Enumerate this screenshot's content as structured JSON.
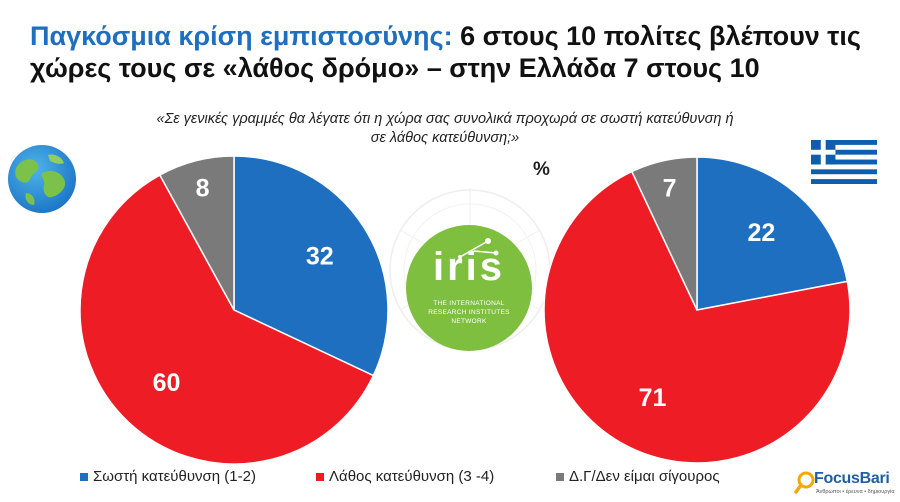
{
  "header": {
    "title_lead": "Παγκόσμια κρίση εμπιστοσύνης:",
    "title_rest": " 6 στους 10 πολίτες βλέπουν τις χώρες τους σε «λάθος δρόμο» – στην Ελλάδα 7 στους 10"
  },
  "question": "«Σε γενικές γραμμές θα λέγατε ότι η χώρα σας συνολικά προχωρά σε σωστή κατεύθυνση ή σε λάθος κατεύθυνση;»",
  "unit": "%",
  "chart_data": [
    {
      "type": "pie",
      "categories": [
        "Σωστή κατεύθυνση (1-2)",
        "Λάθος κατεύθυνση (3 -4)",
        "Δ.Γ/Δεν είμαι σίγουρος"
      ],
      "values": [
        32,
        60,
        8
      ],
      "colors": [
        "#1f6fc1",
        "#ee1c25",
        "#7a7a7a"
      ],
      "data_labels": [
        "32",
        "60",
        "8"
      ],
      "icon": "globe-icon",
      "legend_position": "bottom"
    },
    {
      "type": "pie",
      "categories": [
        "Σωστή κατεύθυνση (1-2)",
        "Λάθος κατεύθυνση (3 -4)",
        "Δ.Γ/Δεν είμαι σίγουρος"
      ],
      "values": [
        22,
        71,
        7
      ],
      "colors": [
        "#1f6fc1",
        "#ee1c25",
        "#7a7a7a"
      ],
      "data_labels": [
        "22",
        "71",
        "7"
      ],
      "icon": "greek-flag-icon",
      "legend_position": "bottom"
    }
  ],
  "legend": [
    {
      "label": "Σωστή κατεύθυνση (1-2)",
      "color": "#1f6fc1"
    },
    {
      "label": "Λάθος κατεύθυνση (3 -4)",
      "color": "#ee1c25"
    },
    {
      "label": "Δ.Γ/Δεν είμαι σίγουρος",
      "color": "#7a7a7a"
    }
  ],
  "iris_logo": {
    "word": "iris",
    "subtitle": "THE INTERNATIONAL RESEARCH INSTITUTES NETWORK",
    "color": "#7fbf3f"
  },
  "brand": {
    "name_focus": "Focus",
    "name_bari": "Bari",
    "tagline": "Άνθρωποι • έρευνα • δημιουργία",
    "color": "#1f5fa8"
  }
}
